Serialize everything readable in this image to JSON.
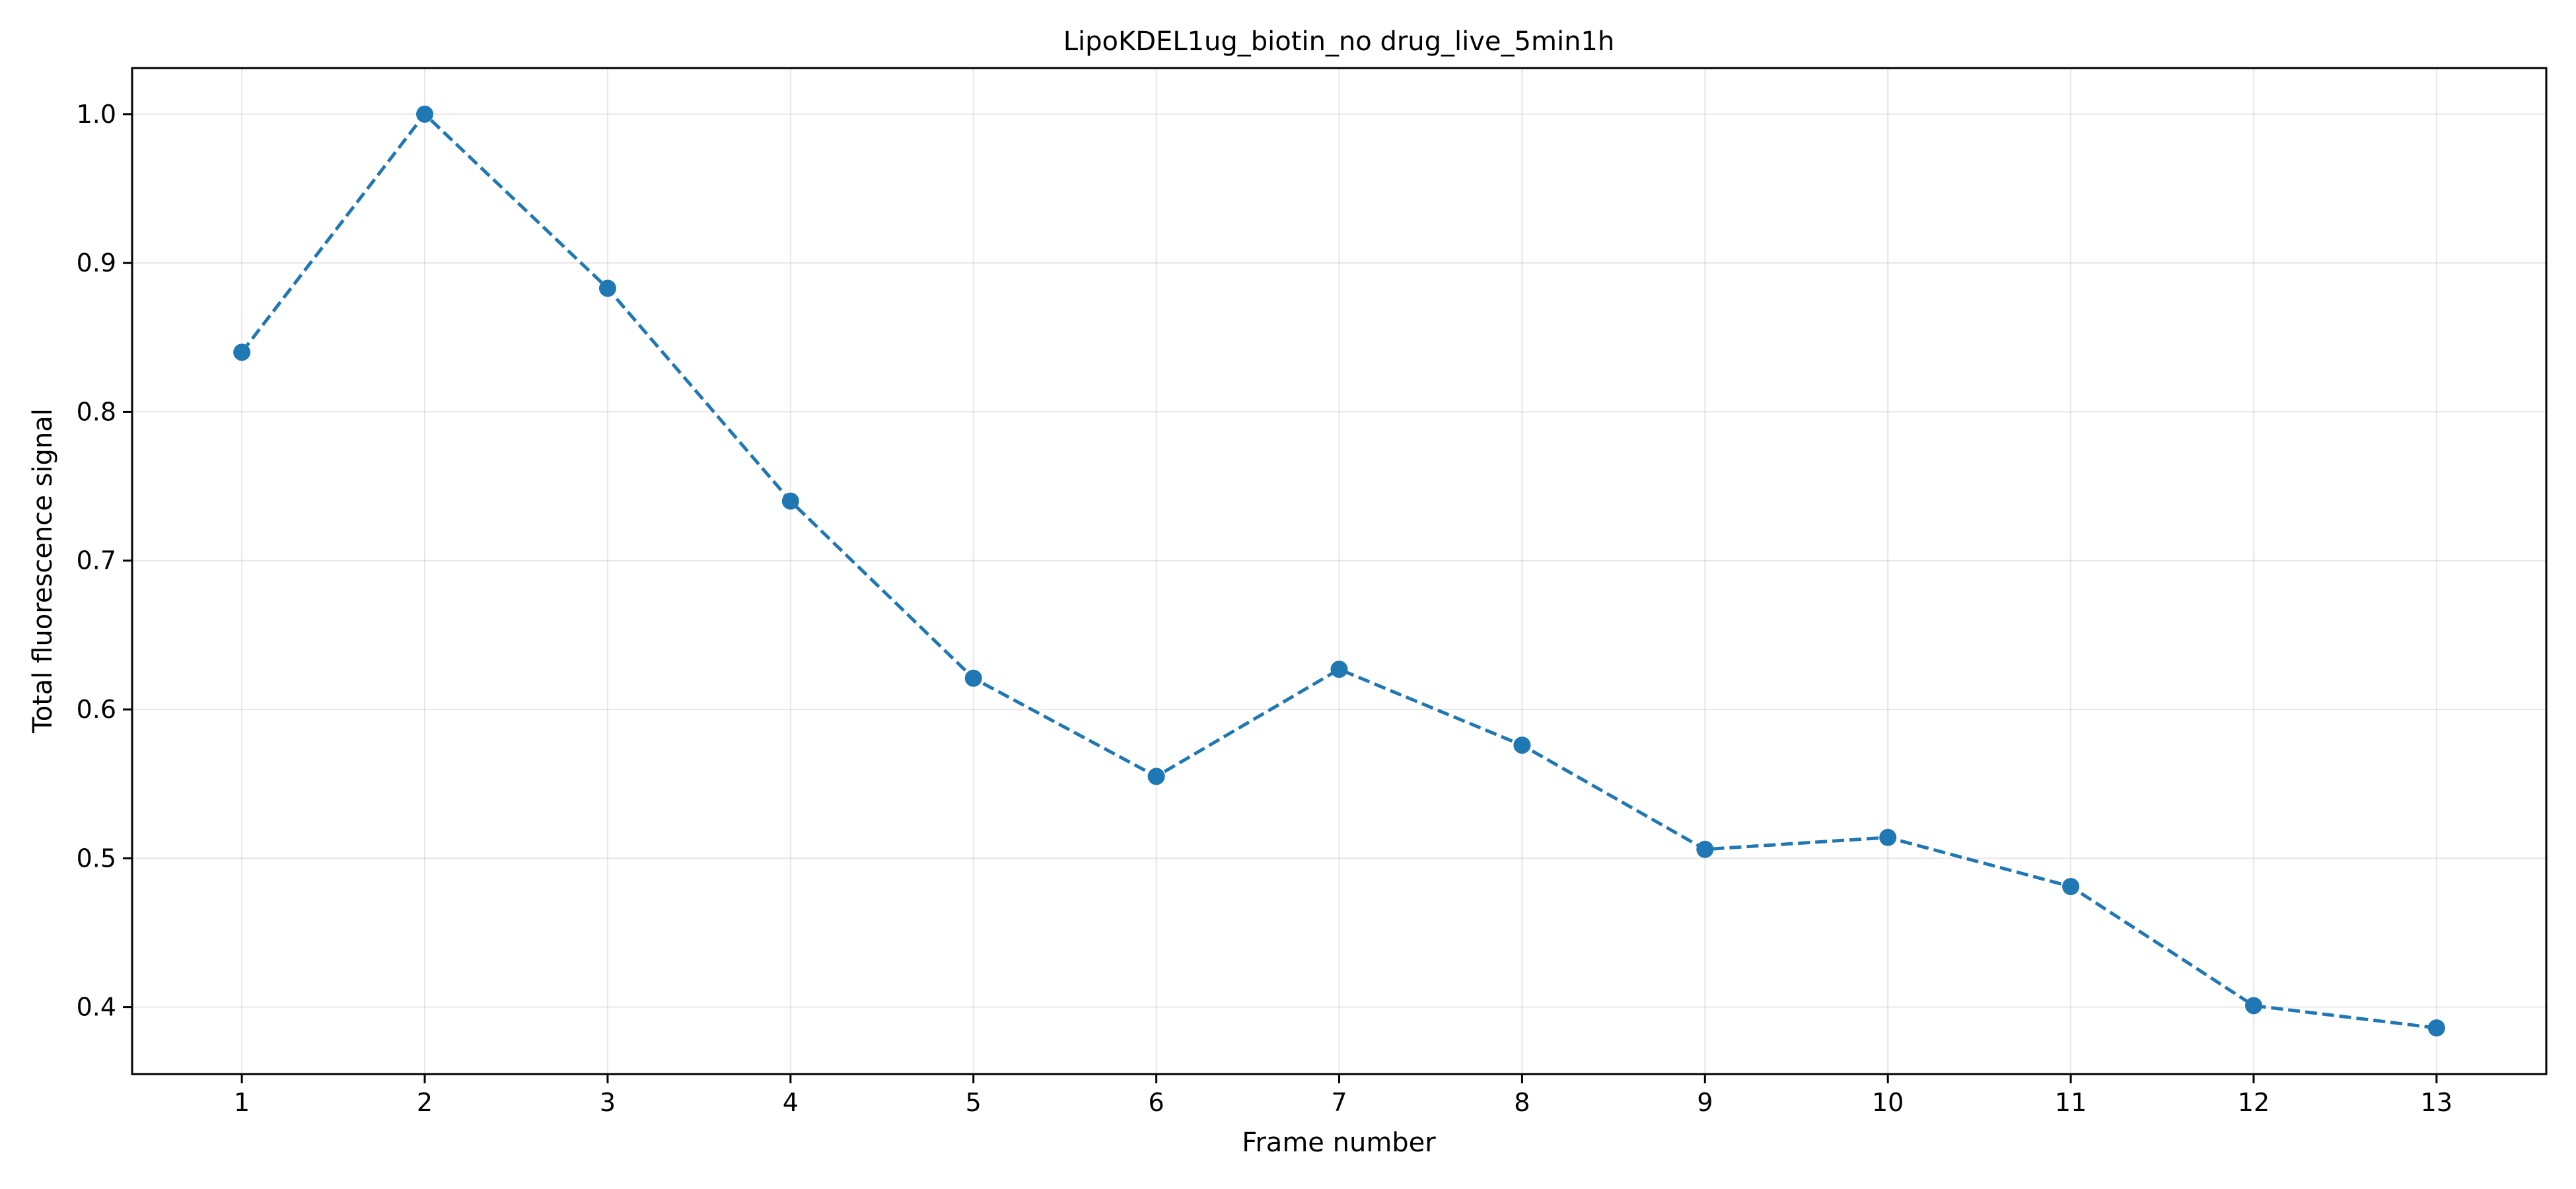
{
  "chart_data": {
    "type": "line",
    "title": "LipoKDEL1ug_biotin_no drug_live_5min1h",
    "xlabel": "Frame number",
    "ylabel": "Total fluorescence signal",
    "x": [
      1,
      2,
      3,
      4,
      5,
      6,
      7,
      8,
      9,
      10,
      11,
      12,
      13
    ],
    "series": [
      {
        "values": [
          0.84,
          1.0,
          0.883,
          0.74,
          0.621,
          0.555,
          0.627,
          0.576,
          0.506,
          0.514,
          0.481,
          0.401,
          0.386
        ],
        "color": "#1f77b4",
        "line_style": "dashed",
        "marker": "circle"
      }
    ],
    "xticks": [
      "1",
      "2",
      "3",
      "4",
      "5",
      "6",
      "7",
      "8",
      "9",
      "10",
      "11",
      "12",
      "13"
    ],
    "yticks": [
      "0.4",
      "0.5",
      "0.6",
      "0.7",
      "0.8",
      "0.9",
      "1.0"
    ],
    "xlim": [
      0.4,
      13.6
    ],
    "ylim": [
      0.355,
      1.031
    ],
    "grid": true,
    "legend": "none"
  }
}
